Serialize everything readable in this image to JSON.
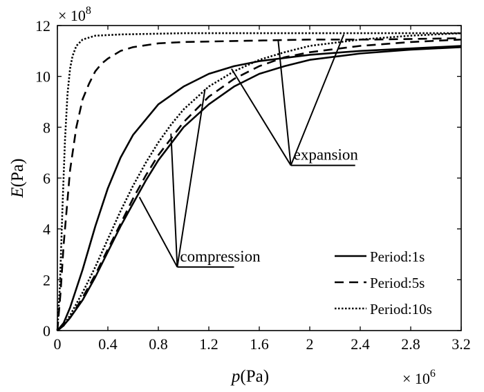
{
  "chart_data": {
    "type": "line",
    "title": "",
    "xlabel": {
      "italic": "p",
      "rest": "(Pa)"
    },
    "ylabel": {
      "italic": "E",
      "rest": "(Pa)"
    },
    "x_exponent": {
      "base": "× 10",
      "power": "6"
    },
    "y_exponent": {
      "base": "× 10",
      "power": "8"
    },
    "xlim": [
      0,
      3.2
    ],
    "ylim": [
      0,
      12
    ],
    "x_ticks": [
      0,
      0.4,
      0.8,
      1.2,
      1.6,
      2,
      2.4,
      2.8,
      3.2
    ],
    "x_tick_labels": [
      "0",
      "0.4",
      "0.8",
      "1.2",
      "1.6",
      "2",
      "2.4",
      "2.8",
      "3.2"
    ],
    "y_ticks": [
      0,
      2,
      4,
      6,
      8,
      10,
      12
    ],
    "y_tick_labels": [
      "0",
      "2",
      "4",
      "6",
      "8",
      "10",
      "12"
    ],
    "grid": false,
    "legend_position": "bottom-right",
    "series": [
      {
        "name": "Period:1s",
        "style": "solid",
        "branches": [
          {
            "label": "compression",
            "x": [
              0,
              0.05,
              0.1,
              0.2,
              0.3,
              0.4,
              0.5,
              0.6,
              0.8,
              1.0,
              1.2,
              1.4,
              1.6,
              2.0,
              2.4,
              2.8,
              3.2
            ],
            "y": [
              0,
              0.3,
              0.9,
              2.4,
              4.1,
              5.6,
              6.8,
              7.7,
              8.9,
              9.6,
              10.1,
              10.4,
              10.6,
              10.85,
              11.0,
              11.1,
              11.2
            ]
          },
          {
            "label": "expansion",
            "x": [
              0,
              0.05,
              0.1,
              0.2,
              0.3,
              0.4,
              0.5,
              0.6,
              0.7,
              0.8,
              1.0,
              1.2,
              1.4,
              1.6,
              1.8,
              2.0,
              2.4,
              2.8,
              3.2
            ],
            "y": [
              0,
              0.2,
              0.5,
              1.2,
              2.1,
              3.1,
              4.1,
              5.0,
              5.9,
              6.7,
              8.0,
              8.9,
              9.6,
              10.1,
              10.4,
              10.65,
              10.9,
              11.05,
              11.15
            ]
          }
        ]
      },
      {
        "name": "Period:5s",
        "style": "dashed",
        "branches": [
          {
            "label": "compression",
            "x": [
              0,
              0.025,
              0.05,
              0.1,
              0.15,
              0.2,
              0.25,
              0.3,
              0.35,
              0.4,
              0.5,
              0.6,
              0.8,
              1.0,
              1.5,
              2.0,
              2.5,
              3.2
            ],
            "y": [
              0,
              1.5,
              3.4,
              6.3,
              8.0,
              9.1,
              9.7,
              10.2,
              10.5,
              10.7,
              11.0,
              11.15,
              11.3,
              11.35,
              11.4,
              11.45,
              11.45,
              11.5
            ]
          },
          {
            "label": "expansion",
            "x": [
              0,
              0.05,
              0.1,
              0.2,
              0.3,
              0.4,
              0.5,
              0.6,
              0.7,
              0.8,
              1.0,
              1.2,
              1.4,
              1.6,
              1.8,
              2.0,
              2.4,
              2.8,
              3.2
            ],
            "y": [
              0,
              0.2,
              0.5,
              1.3,
              2.2,
              3.2,
              4.2,
              5.2,
              6.1,
              6.9,
              8.2,
              9.2,
              9.9,
              10.4,
              10.75,
              10.95,
              11.2,
              11.35,
              11.45
            ]
          }
        ]
      },
      {
        "name": "Period:10s",
        "style": "dotted",
        "branches": [
          {
            "label": "compression",
            "x": [
              0,
              0.02,
              0.04,
              0.06,
              0.08,
              0.1,
              0.12,
              0.15,
              0.2,
              0.3,
              0.5,
              1.0,
              2.0,
              3.2
            ],
            "y": [
              0,
              1.8,
              4.8,
              7.5,
              9.3,
              10.3,
              10.8,
              11.2,
              11.45,
              11.6,
              11.65,
              11.7,
              11.7,
              11.7
            ]
          },
          {
            "label": "expansion",
            "x": [
              0,
              0.05,
              0.1,
              0.2,
              0.3,
              0.4,
              0.5,
              0.6,
              0.7,
              0.8,
              0.9,
              1.0,
              1.2,
              1.4,
              1.6,
              1.8,
              2.0,
              2.4,
              2.8,
              3.2
            ],
            "y": [
              0,
              0.2,
              0.6,
              1.5,
              2.5,
              3.6,
              4.7,
              5.7,
              6.6,
              7.4,
              8.1,
              8.7,
              9.6,
              10.2,
              10.65,
              10.95,
              11.2,
              11.45,
              11.6,
              11.7
            ]
          }
        ]
      }
    ],
    "annotations": [
      {
        "text": "compression",
        "label_anchor": [
          0.95,
          2.5
        ],
        "underline_to_x": 1.4,
        "pointers_to": [
          [
            0.65,
            5.25
          ],
          [
            0.9,
            7.75
          ],
          [
            1.17,
            9.5
          ]
        ]
      },
      {
        "text": "expansion",
        "label_anchor": [
          1.85,
          6.5
        ],
        "underline_to_x": 2.36,
        "pointers_to": [
          [
            1.38,
            10.3
          ],
          [
            1.75,
            11.4
          ],
          [
            2.27,
            11.65
          ]
        ]
      }
    ]
  }
}
